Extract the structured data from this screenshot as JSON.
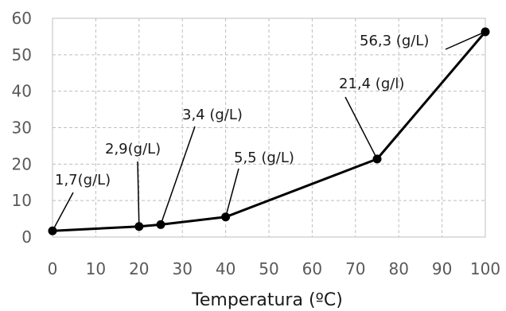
{
  "chart_data": {
    "type": "line",
    "xlabel": "Temperatura (ºC)",
    "ylabel": "",
    "xlim": [
      0,
      100
    ],
    "ylim": [
      0,
      60
    ],
    "xticks": [
      0,
      10,
      20,
      30,
      40,
      50,
      60,
      70,
      80,
      90,
      100
    ],
    "yticks": [
      0,
      10,
      20,
      30,
      40,
      50,
      60
    ],
    "grid": true,
    "series": [
      {
        "x": [
          0,
          20,
          25,
          40,
          75,
          100
        ],
        "y": [
          1.7,
          2.9,
          3.4,
          5.5,
          21.4,
          56.3
        ],
        "color": "#000000"
      }
    ],
    "annotations": [
      {
        "text": "1,7(g/L)"
      },
      {
        "text": "2,9(g/L)"
      },
      {
        "text": "3,4 (g/L)"
      },
      {
        "text": "5,5 (g/L)"
      },
      {
        "text": "21,4 (g/l)"
      },
      {
        "text": "56,3 (g/L)"
      }
    ]
  }
}
